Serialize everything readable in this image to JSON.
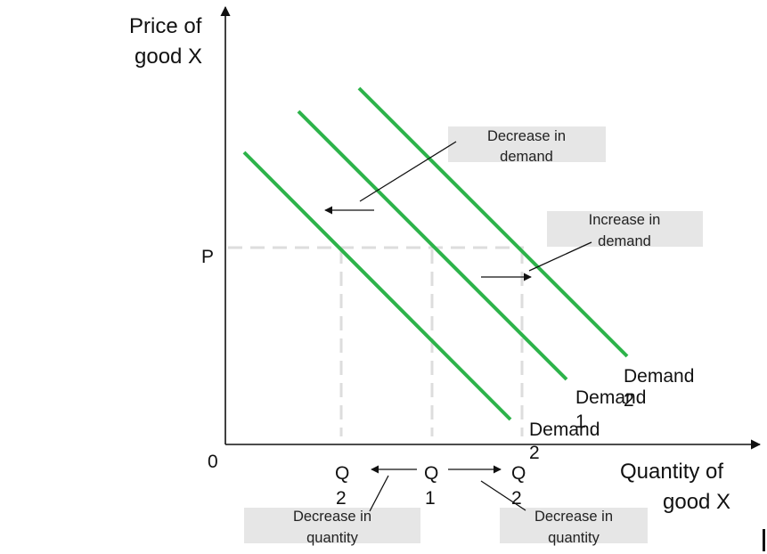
{
  "colors": {
    "curve": "#2db34a",
    "guide": "#dddddd",
    "box": "#e6e6e6",
    "ink": "#111111"
  },
  "axes": {
    "y_label_line1": "Price of",
    "y_label_line2": "good X",
    "x_label_line1": "Quantity of",
    "x_label_line2": "good X",
    "origin": "0",
    "price": "P"
  },
  "curves": {
    "right_label_1": "Demand",
    "right_label_2": "2",
    "middle_label_1": "Demand",
    "middle_label_2": "1",
    "left_label_1": "Demand",
    "left_label_2": "2"
  },
  "quantities": {
    "left_1": "Q",
    "left_2": "2",
    "mid_1": "Q",
    "mid_2": "1",
    "right_1": "Q",
    "right_2": "2"
  },
  "notes": {
    "decrease_demand_1": "Decrease in",
    "decrease_demand_2": "demand",
    "increase_demand_1": "Increase in",
    "increase_demand_2": "demand",
    "decrease_qty_left_1": "Decrease in",
    "decrease_qty_left_2": "quantity",
    "decrease_qty_right_1": "Decrease in",
    "decrease_qty_right_2": "quantity"
  }
}
